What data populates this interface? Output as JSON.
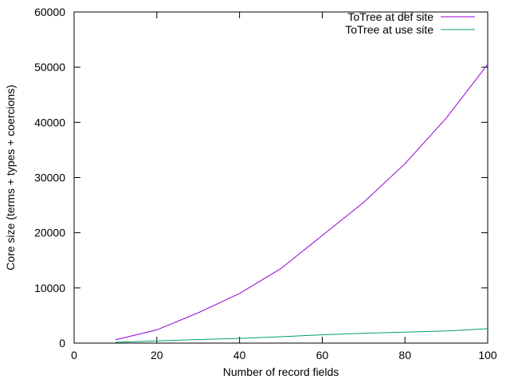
{
  "chart_data": {
    "type": "line",
    "xlabel": "Number of record fields",
    "ylabel": "Core size (terms + types + coercions)",
    "xlim": [
      0,
      100
    ],
    "ylim": [
      0,
      60000
    ],
    "xticks": [
      0,
      20,
      40,
      60,
      80,
      100
    ],
    "yticks": [
      0,
      10000,
      20000,
      30000,
      40000,
      50000,
      60000
    ],
    "grid": false,
    "legend_position": "top-right",
    "series": [
      {
        "name": "ToTree at def site",
        "color": "#9400d3",
        "x": [
          10,
          20,
          30,
          40,
          50,
          60,
          70,
          80,
          90,
          100
        ],
        "y": [
          600,
          2400,
          5500,
          9000,
          13500,
          19500,
          25500,
          32500,
          40800,
          50500
        ]
      },
      {
        "name": "ToTree at use site",
        "color": "#009e73",
        "x": [
          10,
          20,
          30,
          40,
          50,
          60,
          70,
          80,
          90,
          100
        ],
        "y": [
          150,
          400,
          650,
          850,
          1150,
          1500,
          1800,
          2000,
          2200,
          2600
        ]
      }
    ]
  }
}
